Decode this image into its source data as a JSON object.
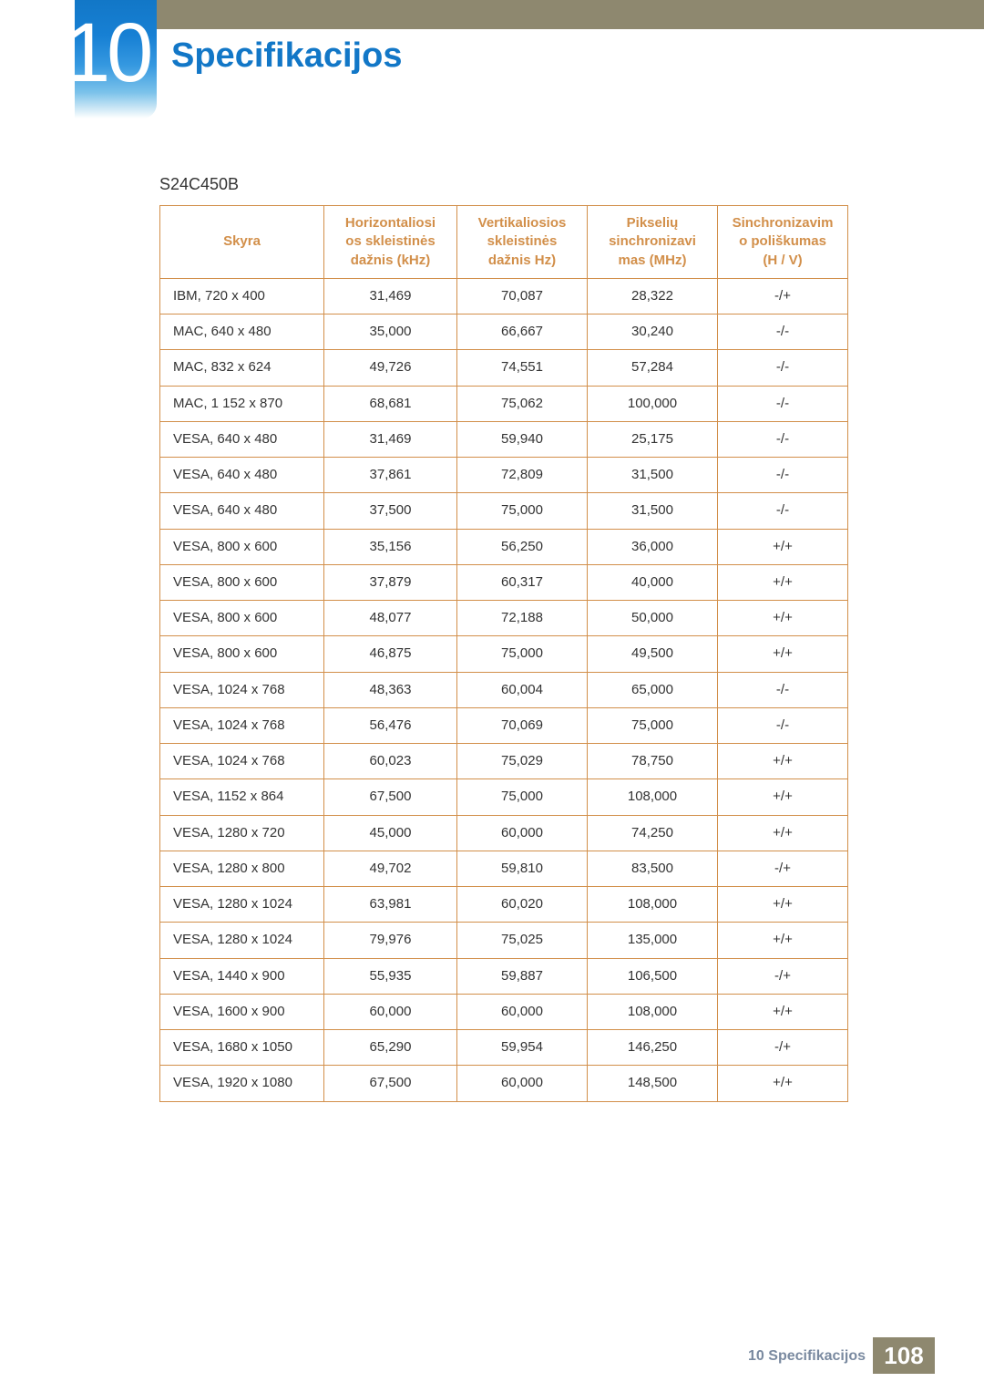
{
  "chapter": {
    "number": "10",
    "title": "Specifikacijos"
  },
  "subtitle": "S24C450B",
  "table": {
    "columns": [
      "Skyra",
      "Horizontaliosios skleistinės dažnis (kHz)",
      "Vertikaliosios skleistinės dažnis Hz)",
      "Pikselių sinchronizavimas (MHz)",
      "Sinchronizavimo poliškumas (H / V)"
    ],
    "col_header_html": [
      "Skyra",
      "Horizontaliosi<br>os skleistinės<br>dažnis (kHz)",
      "Vertikaliosios<br>skleistinės<br>dažnis Hz)",
      "Pikselių<br>sinchronizavi<br>mas (MHz)",
      "Sinchronizavim<br>o poliškumas<br>(H / V)"
    ],
    "rows": [
      [
        "IBM, 720 x 400",
        "31,469",
        "70,087",
        "28,322",
        "-/+"
      ],
      [
        "MAC, 640 x 480",
        "35,000",
        "66,667",
        "30,240",
        "-/-"
      ],
      [
        "MAC, 832 x 624",
        "49,726",
        "74,551",
        "57,284",
        "-/-"
      ],
      [
        "MAC, 1 152 x 870",
        "68,681",
        "75,062",
        "100,000",
        "-/-"
      ],
      [
        "VESA, 640 x 480",
        "31,469",
        "59,940",
        "25,175",
        "-/-"
      ],
      [
        "VESA, 640 x 480",
        "37,861",
        "72,809",
        "31,500",
        "-/-"
      ],
      [
        "VESA, 640 x 480",
        "37,500",
        "75,000",
        "31,500",
        "-/-"
      ],
      [
        "VESA, 800 x 600",
        "35,156",
        "56,250",
        "36,000",
        "+/+"
      ],
      [
        "VESA, 800 x 600",
        "37,879",
        "60,317",
        "40,000",
        "+/+"
      ],
      [
        "VESA, 800 x 600",
        "48,077",
        "72,188",
        "50,000",
        "+/+"
      ],
      [
        "VESA, 800 x 600",
        "46,875",
        "75,000",
        "49,500",
        "+/+"
      ],
      [
        "VESA, 1024 x 768",
        "48,363",
        "60,004",
        "65,000",
        "-/-"
      ],
      [
        "VESA, 1024 x 768",
        "56,476",
        "70,069",
        "75,000",
        "-/-"
      ],
      [
        "VESA, 1024 x 768",
        "60,023",
        "75,029",
        "78,750",
        "+/+"
      ],
      [
        "VESA, 1152 x 864",
        "67,500",
        "75,000",
        "108,000",
        "+/+"
      ],
      [
        "VESA, 1280 x 720",
        "45,000",
        "60,000",
        "74,250",
        "+/+"
      ],
      [
        "VESA, 1280 x 800",
        "49,702",
        "59,810",
        "83,500",
        "-/+"
      ],
      [
        "VESA, 1280 x 1024",
        "63,981",
        "60,020",
        "108,000",
        "+/+"
      ],
      [
        "VESA, 1280 x 1024",
        "79,976",
        "75,025",
        "135,000",
        "+/+"
      ],
      [
        "VESA, 1440 x 900",
        "55,935",
        "59,887",
        "106,500",
        "-/+"
      ],
      [
        "VESA, 1600 x 900",
        "60,000",
        "60,000",
        "108,000",
        "+/+"
      ],
      [
        "VESA, 1680 x 1050",
        "65,290",
        "59,954",
        "146,250",
        "-/+"
      ],
      [
        "VESA, 1920 x 1080",
        "67,500",
        "60,000",
        "148,500",
        "+/+"
      ]
    ]
  },
  "footer": {
    "section_label": "10 Specifikacijos",
    "page_number": "108"
  },
  "colors": {
    "accent_orange": "#d28f4a",
    "accent_blue": "#1277c7",
    "header_bar": "#8e886f",
    "footer_text": "#7a8aa0",
    "body_text": "#333333"
  }
}
